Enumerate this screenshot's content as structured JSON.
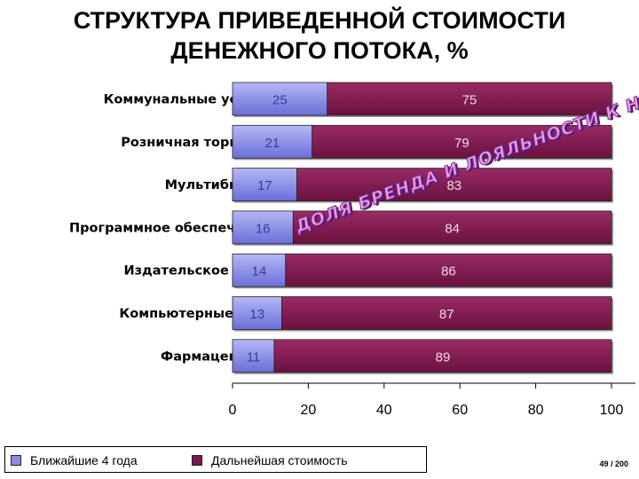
{
  "title_line1": "СТРУКТУРА ПРИВЕДЕННОЙ СТОИМОСТИ",
  "title_line2": "ДЕНЕЖНОГО ПОТОКА, %",
  "watermark": "ДОЛЯ БРЕНДА И ЛОЯЛЬНОСТИ К НЕМУ",
  "page_number": "49 / 200",
  "colors": {
    "near": "#8a8ee6",
    "far": "#7a1a4e",
    "axis": "#000000"
  },
  "chart_data": {
    "type": "bar",
    "orientation": "horizontal",
    "stacked": true,
    "title": "СТРУКТУРА ПРИВЕДЕННОЙ СТОИМОСТИ ДЕНЕЖНОГО ПОТОКА, %",
    "categories": [
      "Коммунальные услуги",
      "Розничная торговля",
      "Мультибизнес",
      "Программное обеспечение",
      "Издательское дело",
      "Компьютерные сети",
      "Фармацевтика"
    ],
    "series": [
      {
        "name": "Ближайшие 4 года",
        "values": [
          25,
          21,
          17,
          16,
          14,
          13,
          11
        ]
      },
      {
        "name": "Дальнейшая стоимость",
        "values": [
          75,
          79,
          83,
          84,
          86,
          87,
          89
        ]
      }
    ],
    "xlim": [
      0,
      100
    ],
    "xticks": [
      0,
      20,
      40,
      60,
      80,
      100
    ],
    "legend_position": "bottom-left",
    "grid": false
  }
}
